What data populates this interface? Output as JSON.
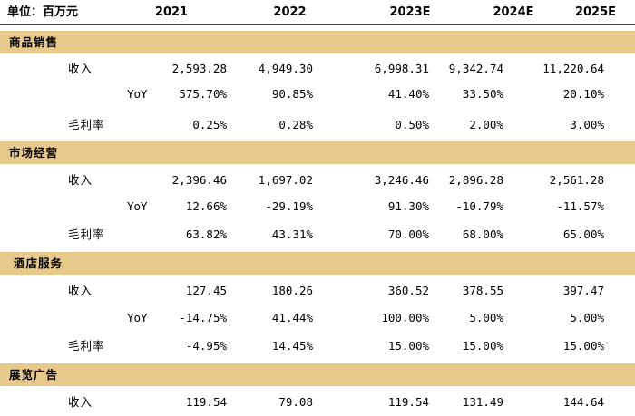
{
  "header": {
    "unit": "单位：百万元",
    "years": [
      "2021",
      "2022",
      "2023E",
      "2024E",
      "2025E"
    ]
  },
  "sections": [
    {
      "title": "商品销售",
      "rows": [
        {
          "label": "收入",
          "values": [
            "2,593.28",
            "4,949.30",
            "6,998.31",
            "9,342.74",
            "11,220.64"
          ]
        },
        {
          "label": "YoY",
          "values": [
            "575.70%",
            "90.85%",
            "41.40%",
            "33.50%",
            "20.10%"
          ]
        },
        {
          "label": "毛利率",
          "values": [
            "0.25%",
            "0.28%",
            "0.50%",
            "2.00%",
            "3.00%"
          ]
        }
      ]
    },
    {
      "title": "市场经营",
      "rows": [
        {
          "label": "收入",
          "values": [
            "2,396.46",
            "1,697.02",
            "3,246.46",
            "2,896.28",
            "2,561.28"
          ]
        },
        {
          "label": "YoY",
          "values": [
            "12.66%",
            "-29.19%",
            "91.30%",
            "-10.79%",
            "-11.57%"
          ]
        },
        {
          "label": "毛利率",
          "values": [
            "63.82%",
            "43.31%",
            "70.00%",
            "68.00%",
            "65.00%"
          ]
        }
      ]
    },
    {
      "title": "酒店服务",
      "rows": [
        {
          "label": "收入",
          "values": [
            "127.45",
            "180.26",
            "360.52",
            "378.55",
            "397.47"
          ]
        },
        {
          "label": "YoY",
          "values": [
            "-14.75%",
            "41.44%",
            "100.00%",
            "5.00%",
            "5.00%"
          ]
        },
        {
          "label": "毛利率",
          "values": [
            "-4.95%",
            "14.45%",
            "15.00%",
            "15.00%",
            "15.00%"
          ]
        }
      ]
    },
    {
      "title": "展览广告",
      "rows": [
        {
          "label": "收入",
          "values": [
            "119.54",
            "79.08",
            "119.54",
            "131.49",
            "144.64"
          ]
        }
      ]
    }
  ]
}
